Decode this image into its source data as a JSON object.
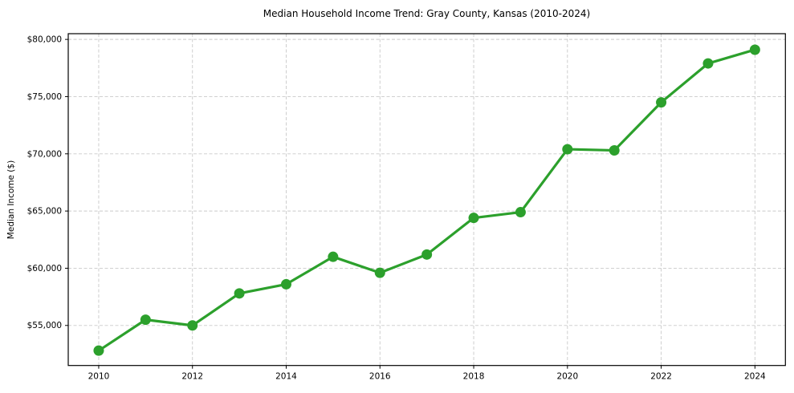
{
  "chart_data": {
    "type": "line",
    "title": "Median Household Income Trend: Gray County, Kansas (2010-2024)",
    "xlabel": "",
    "ylabel": "Median Income ($)",
    "x": [
      2010,
      2011,
      2012,
      2013,
      2014,
      2015,
      2016,
      2017,
      2018,
      2019,
      2020,
      2021,
      2022,
      2023,
      2024
    ],
    "values": [
      52800,
      55500,
      55000,
      57800,
      58600,
      61000,
      59600,
      61200,
      64400,
      64900,
      70400,
      70300,
      74500,
      77900,
      79100
    ],
    "series_name": "Median Household Income",
    "xlim": [
      2009.35,
      2024.65
    ],
    "ylim": [
      51500,
      80500
    ],
    "xticks": [
      2010,
      2012,
      2014,
      2016,
      2018,
      2020,
      2022,
      2024
    ],
    "xtick_labels": [
      "2010",
      "2012",
      "2014",
      "2016",
      "2018",
      "2020",
      "2022",
      "2024"
    ],
    "yticks": [
      55000,
      60000,
      65000,
      70000,
      75000,
      80000
    ],
    "ytick_labels": [
      "$55,000",
      "$60,000",
      "$65,000",
      "$70,000",
      "$75,000",
      "$80,000"
    ],
    "grid": true,
    "grid_style": "dashed",
    "legend": false,
    "line_color": "#2ca02c",
    "marker": "circle",
    "grid_color": "#c9c9c9",
    "frame_color": "#000000",
    "background": "#ffffff"
  }
}
